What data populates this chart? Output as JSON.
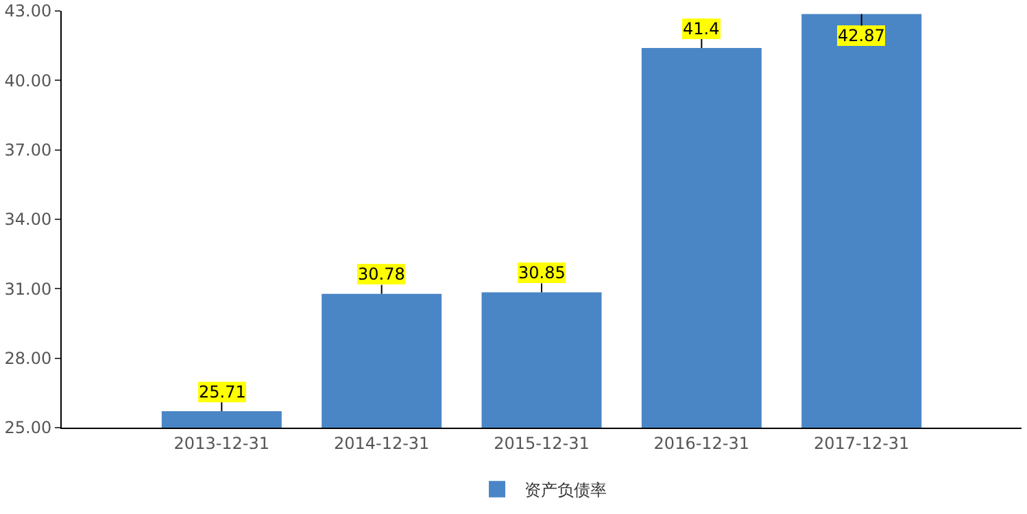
{
  "chart_data": {
    "type": "bar",
    "categories": [
      "2013-12-31",
      "2014-12-31",
      "2015-12-31",
      "2016-12-31",
      "2017-12-31"
    ],
    "series": [
      {
        "name": "资产负债率",
        "color": "#4a86c6",
        "values": [
          25.71,
          30.78,
          30.85,
          41.4,
          42.87
        ]
      }
    ],
    "ylim": [
      25,
      43
    ],
    "yticks": [
      {
        "value": 25,
        "label": "25.00"
      },
      {
        "value": 28,
        "label": "28.00"
      },
      {
        "value": 31,
        "label": "31.00"
      },
      {
        "value": 34,
        "label": "34.00"
      },
      {
        "value": 37,
        "label": "37.00"
      },
      {
        "value": 40,
        "label": "40.00"
      },
      {
        "value": 43,
        "label": "43.00"
      }
    ],
    "grid": false,
    "legend": "bottom",
    "data_labels": true
  }
}
